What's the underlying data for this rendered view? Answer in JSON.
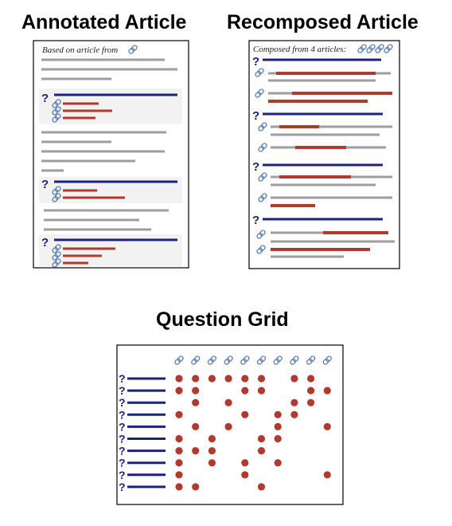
{
  "titles": {
    "annotated": "Annotated Article",
    "recomposed": "Recomposed Article",
    "grid": "Question Grid"
  },
  "annotated_caption": "Based on article from",
  "recomposed_caption": "Composed from 4 articles:",
  "question_mark": "?",
  "colors": {
    "question": "#1a237e",
    "answer": "#b03a2e",
    "text_line": "#9e9e9e",
    "link": "#5a7fb8",
    "highlight_bg": "#f2f2f2",
    "border": "#000000"
  },
  "icons": {
    "link": "link-icon",
    "question": "question-mark"
  },
  "grid_matrix": [
    [
      1,
      1,
      1,
      1,
      1,
      1,
      0,
      1,
      1,
      0
    ],
    [
      1,
      1,
      0,
      0,
      1,
      1,
      0,
      0,
      1,
      1
    ],
    [
      0,
      1,
      0,
      1,
      0,
      0,
      0,
      1,
      1,
      0
    ],
    [
      1,
      0,
      0,
      0,
      1,
      0,
      1,
      1,
      0,
      0
    ],
    [
      0,
      1,
      0,
      1,
      0,
      0,
      1,
      0,
      0,
      1
    ],
    [
      1,
      0,
      1,
      0,
      0,
      1,
      1,
      0,
      0,
      0
    ],
    [
      1,
      1,
      1,
      0,
      0,
      1,
      0,
      0,
      0,
      0
    ],
    [
      1,
      0,
      1,
      0,
      1,
      0,
      1,
      0,
      0,
      0
    ],
    [
      1,
      0,
      0,
      0,
      1,
      0,
      0,
      0,
      0,
      1
    ],
    [
      1,
      1,
      0,
      0,
      0,
      1,
      0,
      0,
      0,
      0
    ]
  ]
}
